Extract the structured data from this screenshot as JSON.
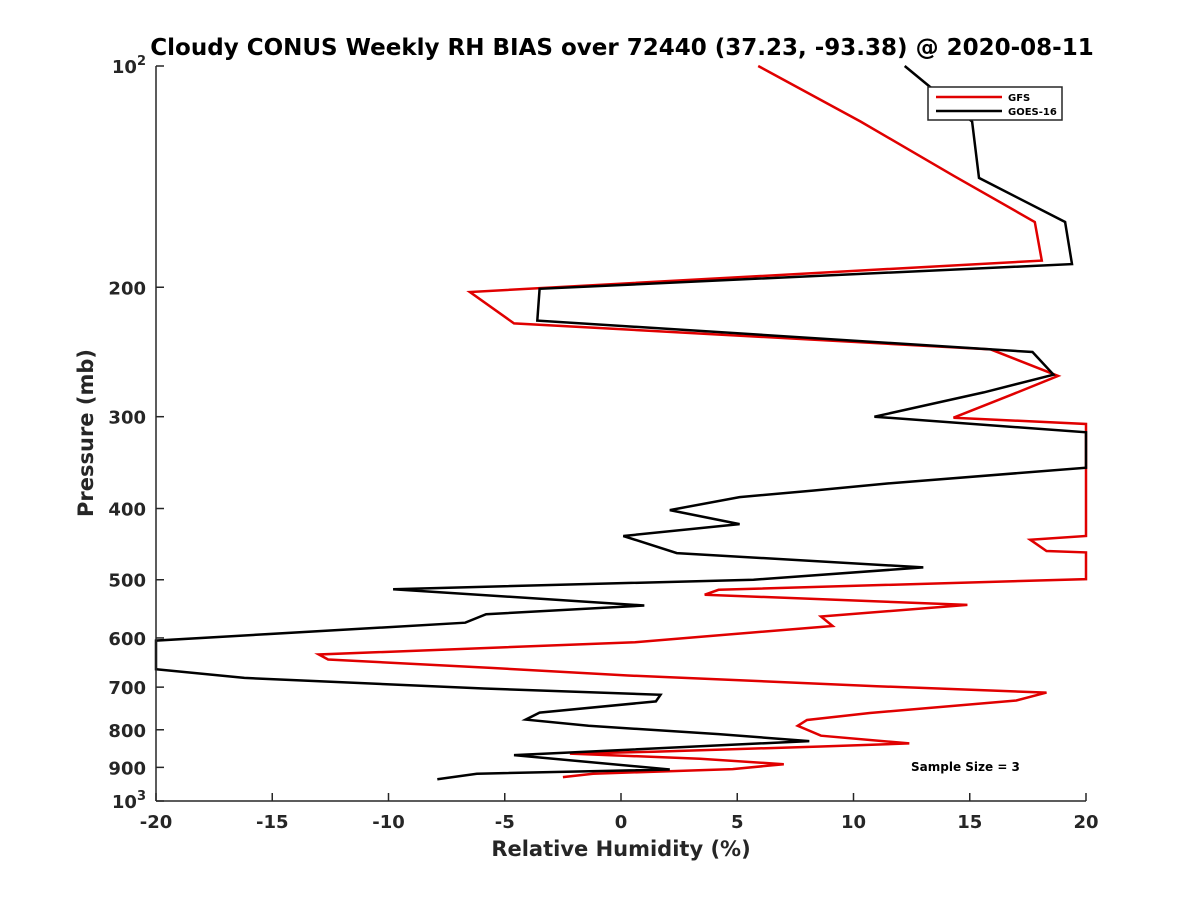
{
  "chart_data": {
    "type": "line",
    "title": "Cloudy CONUS Weekly RH BIAS over 72440 (37.23, -93.38) @ 2020-08-11",
    "xlabel": "Relative Humidity (%)",
    "ylabel": "Pressure (mb)",
    "xlim": [
      -20,
      20
    ],
    "ylim": [
      100,
      1000
    ],
    "y_scale": "log",
    "y_reversed": true,
    "grid": false,
    "legend_position": "top-right",
    "annotation": "Sample Size = 3",
    "x_ticks": [
      "-20",
      "-15",
      "-10",
      "-5",
      "0",
      "5",
      "10",
      "15",
      "20"
    ],
    "y_ticks": [
      {
        "value": 100,
        "base": "10",
        "exp": "2"
      },
      {
        "value": 200,
        "label": "200"
      },
      {
        "value": 300,
        "label": "300"
      },
      {
        "value": 400,
        "label": "400"
      },
      {
        "value": 500,
        "label": "500"
      },
      {
        "value": 600,
        "label": "600"
      },
      {
        "value": 700,
        "label": "700"
      },
      {
        "value": 800,
        "label": "800"
      },
      {
        "value": 900,
        "label": "900"
      },
      {
        "value": 1000,
        "base": "10",
        "exp": "3"
      }
    ],
    "series": [
      {
        "name": "GFS",
        "color": "#e00000",
        "points": [
          [
            5.9,
            100
          ],
          [
            10.3,
            119
          ],
          [
            14.3,
            141
          ],
          [
            17.8,
            163
          ],
          [
            18.1,
            184
          ],
          [
            -6.5,
            203
          ],
          [
            -4.6,
            224
          ],
          [
            15.9,
            243
          ],
          [
            18.8,
            264
          ],
          [
            16.8,
            280
          ],
          [
            14.3,
            301
          ],
          [
            20,
            307
          ],
          [
            20,
            436
          ],
          [
            17.6,
            441
          ],
          [
            18.3,
            457
          ],
          [
            20,
            459
          ],
          [
            20,
            499
          ],
          [
            4.2,
            516
          ],
          [
            3.6,
            524
          ],
          [
            14.9,
            541
          ],
          [
            8.6,
            561
          ],
          [
            9.1,
            578
          ],
          [
            5.6,
            590
          ],
          [
            0.6,
            608
          ],
          [
            -13,
            632
          ],
          [
            -12.6,
            642
          ],
          [
            -5.6,
            659
          ],
          [
            0.3,
            675
          ],
          [
            11.0,
            698
          ],
          [
            18.3,
            712
          ],
          [
            17.0,
            730
          ],
          [
            10.7,
            759
          ],
          [
            8.0,
            776
          ],
          [
            7.6,
            790
          ],
          [
            8.6,
            815
          ],
          [
            12.4,
            835
          ],
          [
            8.6,
            843
          ],
          [
            1.4,
            857
          ],
          [
            -2.2,
            862
          ],
          [
            3.4,
            876
          ],
          [
            7.0,
            891
          ],
          [
            4.8,
            905
          ],
          [
            -1.2,
            918
          ],
          [
            -2.5,
            928
          ]
        ]
      },
      {
        "name": "GOES-16",
        "color": "#000000",
        "points": [
          [
            12.2,
            100
          ],
          [
            15.1,
            119
          ],
          [
            15.4,
            142
          ],
          [
            19.1,
            163
          ],
          [
            19.4,
            186
          ],
          [
            -3.5,
            201
          ],
          [
            -3.6,
            222
          ],
          [
            17.7,
            245
          ],
          [
            18.6,
            263
          ],
          [
            15.6,
            278
          ],
          [
            10.9,
            300
          ],
          [
            20,
            315
          ],
          [
            20,
            352
          ],
          [
            11.4,
            370
          ],
          [
            8.3,
            378
          ],
          [
            5.1,
            386
          ],
          [
            2.1,
            402
          ],
          [
            5.1,
            420
          ],
          [
            0.1,
            436
          ],
          [
            2.4,
            460
          ],
          [
            13,
            481
          ],
          [
            5.7,
            500
          ],
          [
            -9.8,
            515
          ],
          [
            1.0,
            542
          ],
          [
            -5.8,
            557
          ],
          [
            -6.7,
            572
          ],
          [
            -20,
            605
          ],
          [
            -20,
            662
          ],
          [
            -16.2,
            680
          ],
          [
            -5.9,
            703
          ],
          [
            1.7,
            717
          ],
          [
            1.5,
            732
          ],
          [
            -3.5,
            758
          ],
          [
            -4.1,
            775
          ],
          [
            -1.4,
            790
          ],
          [
            4.2,
            811
          ],
          [
            8.1,
            829
          ],
          [
            -4.6,
            866
          ],
          [
            2.1,
            906
          ],
          [
            -6.2,
            918
          ],
          [
            -7.9,
            934
          ]
        ]
      }
    ]
  }
}
